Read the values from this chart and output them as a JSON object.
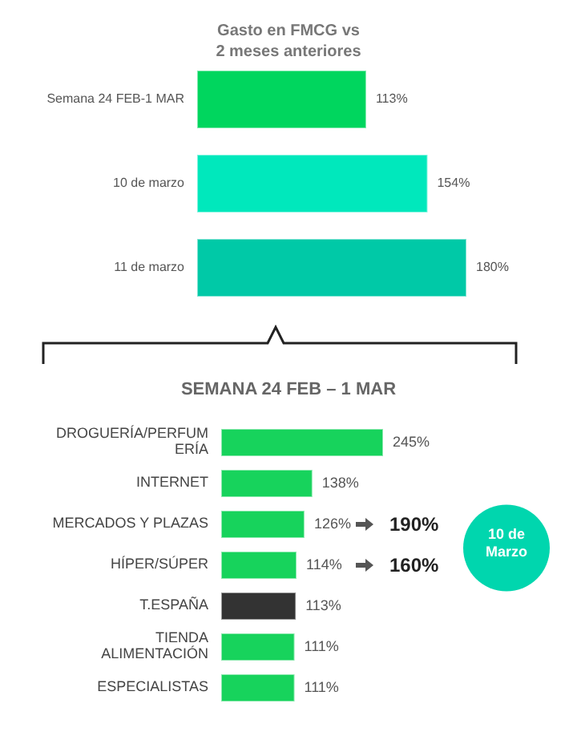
{
  "chart_data": [
    {
      "type": "bar",
      "orientation": "horizontal",
      "title": "Gasto en FMCG vs\n2 meses anteriores",
      "categories": [
        "Semana 24 FEB-1 MAR",
        "10 de marzo",
        "11 de marzo"
      ],
      "values": [
        113,
        154,
        180
      ],
      "colors": [
        "#00d65e",
        "#00e8bc",
        "#00c9a7"
      ],
      "value_labels": [
        "113%",
        "154%",
        "180%"
      ]
    },
    {
      "type": "bar",
      "orientation": "horizontal",
      "title": "SEMANA 24 FEB – 1 MAR",
      "categories": [
        "DROGUERÍA/PERFUMERÍA",
        "INTERNET",
        "MERCADOS Y PLAZAS",
        "HÍPER/SÚPER",
        "T.ESPAÑA",
        "TIENDA ALIMENTACIÓN",
        "ESPECIALISTAS"
      ],
      "values": [
        245,
        138,
        126,
        114,
        113,
        111,
        111
      ],
      "colors": [
        "#17d35c",
        "#17d35c",
        "#17d35c",
        "#17d35c",
        "#333333",
        "#17d35c",
        "#17d35c"
      ],
      "value_labels": [
        "245%",
        "138%",
        "126%",
        "114%",
        "113%",
        "111%",
        "111%"
      ],
      "annotations": [
        "190%",
        "160%",
        "10 de Marzo"
      ]
    }
  ]
}
